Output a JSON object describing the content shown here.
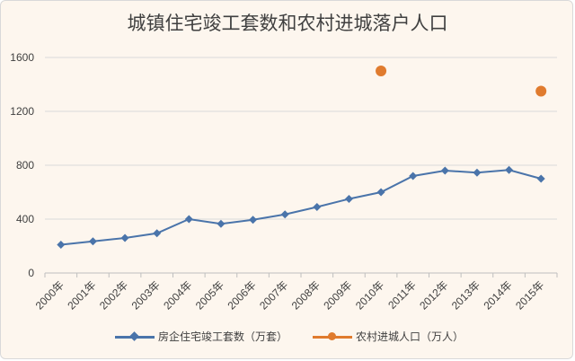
{
  "chart_data": {
    "type": "line",
    "title": "城镇住宅竣工套数和农村进城落户人口",
    "xlabel": "",
    "ylabel": "",
    "categories": [
      "2000年",
      "2001年",
      "2002年",
      "2003年",
      "2004年",
      "2005年",
      "2006年",
      "2007年",
      "2008年",
      "2009年",
      "2010年",
      "2011年",
      "2012年",
      "2013年",
      "2014年",
      "2015年"
    ],
    "ylim": [
      0,
      1600
    ],
    "yticks": [
      "0",
      "400",
      "800",
      "1200",
      "1600"
    ],
    "grid": true,
    "legend_position": "bottom",
    "series": [
      {
        "name": "房企住宅竣工套数（万套）",
        "color": "#4a74aa",
        "marker": "diamond",
        "values": [
          210,
          235,
          260,
          295,
          400,
          365,
          395,
          435,
          490,
          550,
          600,
          720,
          760,
          745,
          765,
          700
        ]
      },
      {
        "name": "农村进城人口（万人）",
        "color": "#e07b2e",
        "marker": "circle",
        "values": [
          null,
          null,
          null,
          null,
          null,
          null,
          null,
          null,
          null,
          null,
          1500,
          null,
          null,
          null,
          null,
          1350
        ]
      }
    ]
  }
}
